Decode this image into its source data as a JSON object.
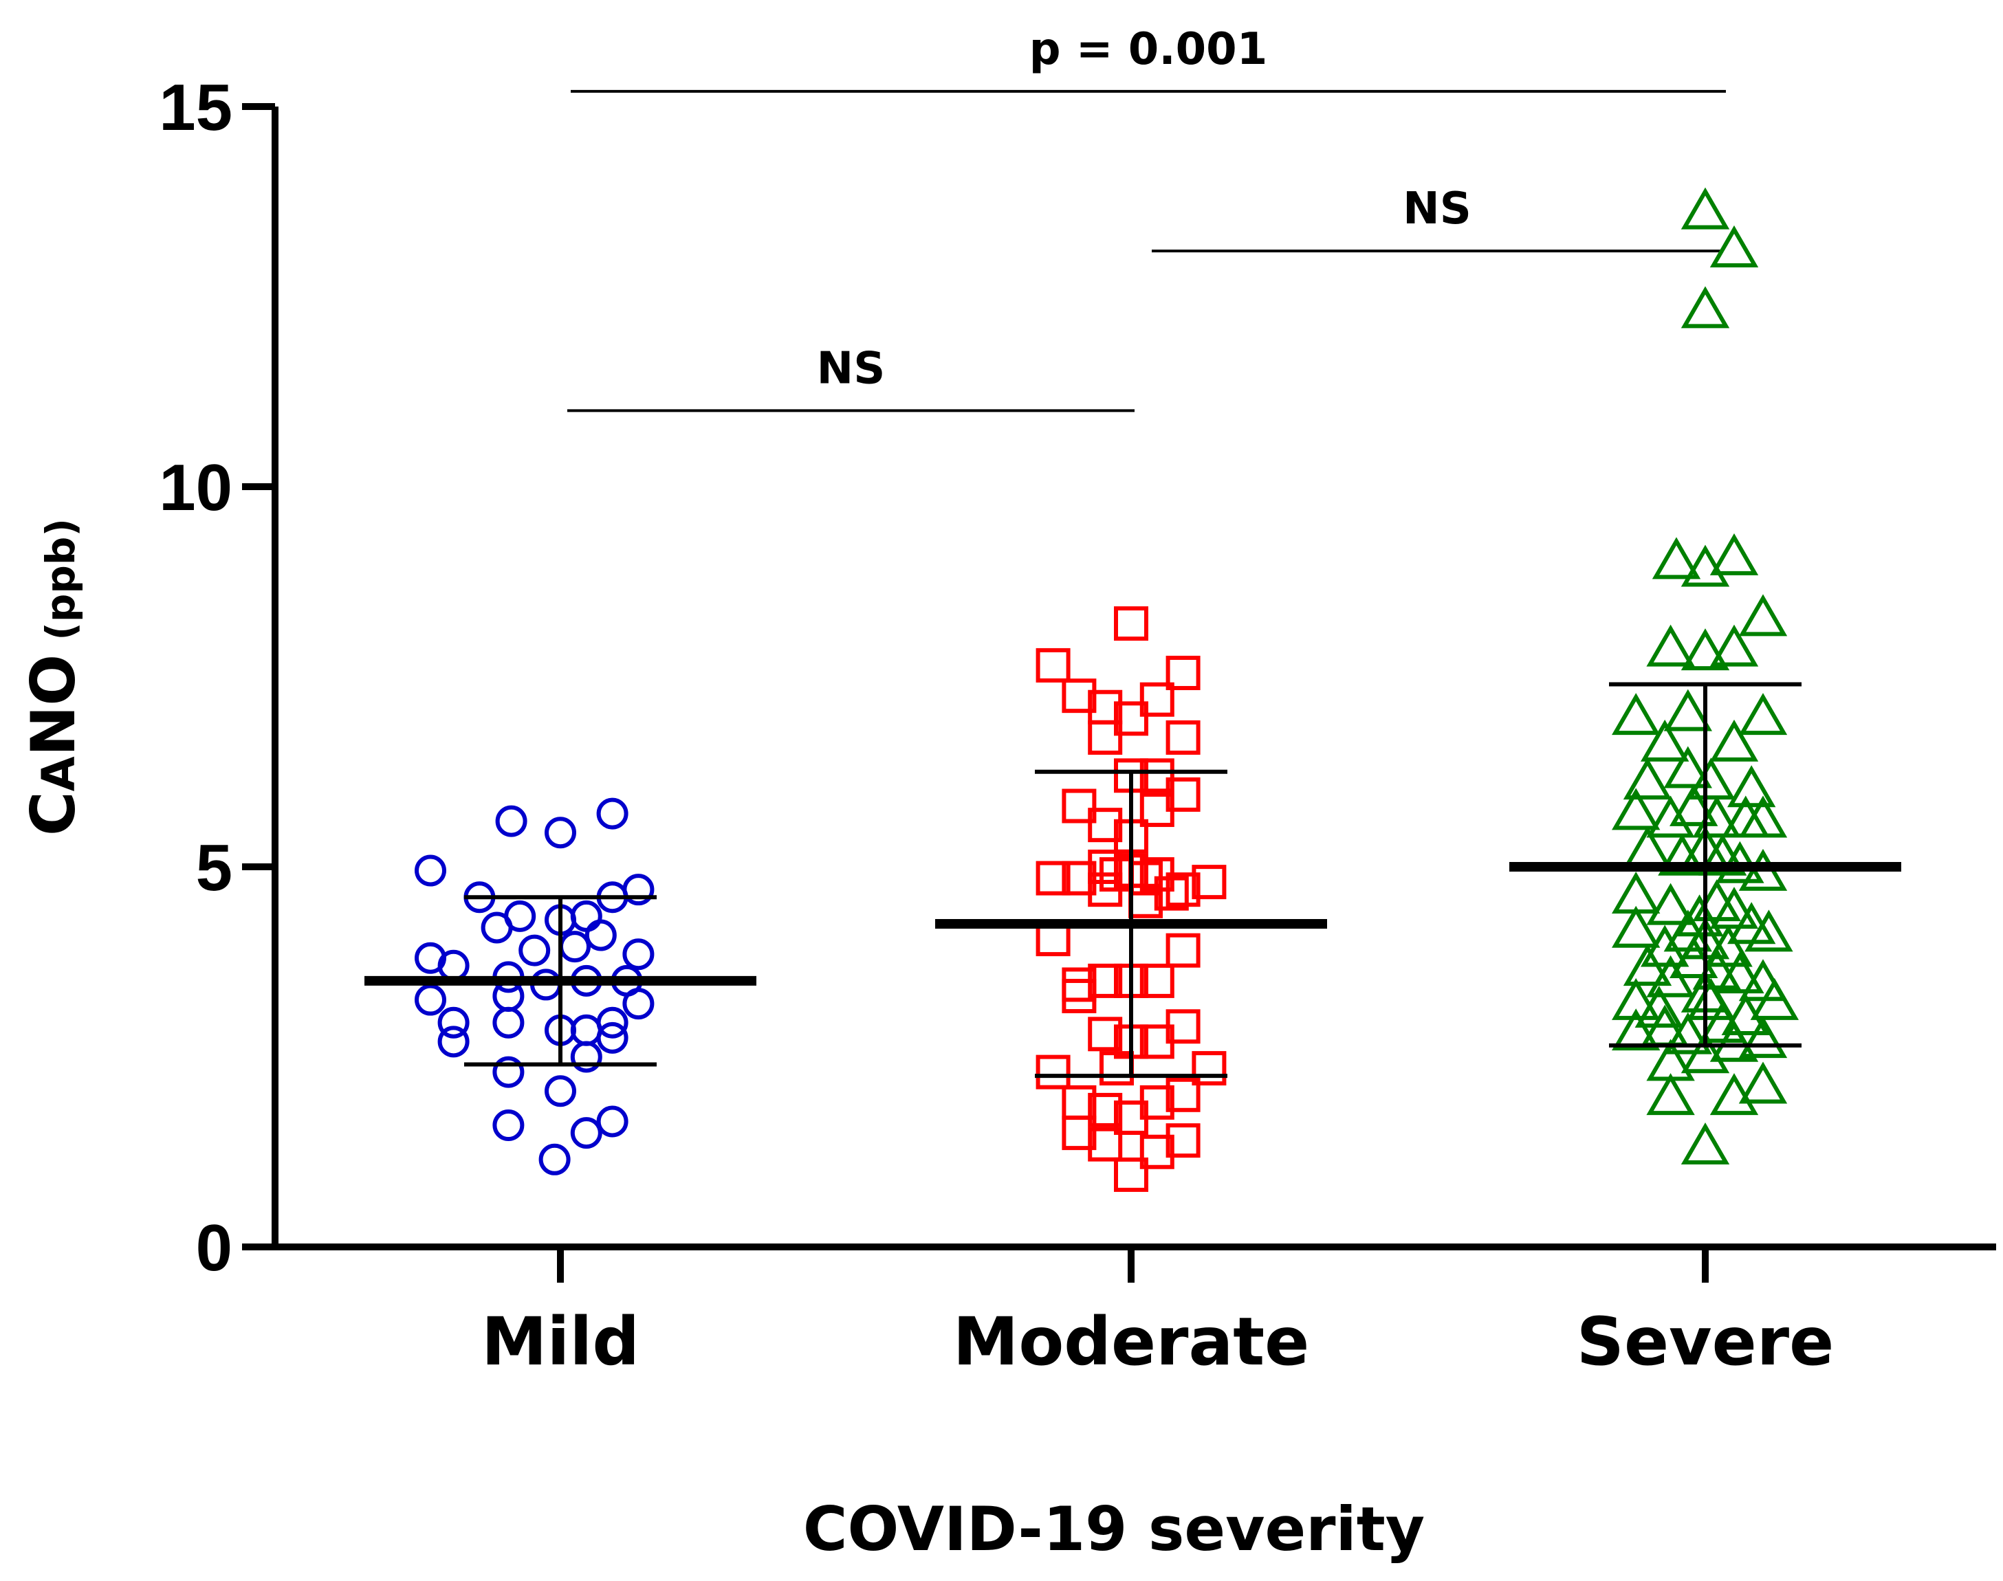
{
  "chart_data": {
    "type": "scatter",
    "title": "",
    "xlabel": "COVID-19 severity",
    "ylabel": {
      "main": "C",
      "sub": "A",
      "rest": "NO",
      "unit": " (ppb)"
    },
    "ylim": [
      0,
      15
    ],
    "yticks": [
      "0",
      "5",
      "10",
      "15"
    ],
    "categories": [
      "Mild",
      "Moderate",
      "Severe"
    ],
    "series": [
      {
        "name": "Mild",
        "marker": "circle",
        "color": "#0000cc",
        "mean": 3.5,
        "sd_low": 2.4,
        "sd_high": 4.6,
        "points": [
          [
            -0.45,
            4.95
          ],
          [
            -0.17,
            5.6
          ],
          [
            0.0,
            5.45
          ],
          [
            0.18,
            5.7
          ],
          [
            -0.28,
            4.6
          ],
          [
            0.18,
            4.6
          ],
          [
            0.27,
            4.7
          ],
          [
            -0.22,
            4.2
          ],
          [
            -0.14,
            4.35
          ],
          [
            0.0,
            4.3
          ],
          [
            0.09,
            4.35
          ],
          [
            0.14,
            4.1
          ],
          [
            -0.45,
            3.8
          ],
          [
            -0.37,
            3.7
          ],
          [
            -0.09,
            3.9
          ],
          [
            0.05,
            3.95
          ],
          [
            0.27,
            3.85
          ],
          [
            -0.18,
            3.55
          ],
          [
            -0.05,
            3.45
          ],
          [
            0.09,
            3.5
          ],
          [
            0.23,
            3.5
          ],
          [
            -0.45,
            3.25
          ],
          [
            -0.18,
            3.3
          ],
          [
            0.27,
            3.2
          ],
          [
            -0.37,
            2.95
          ],
          [
            -0.18,
            2.95
          ],
          [
            0.0,
            2.85
          ],
          [
            0.09,
            2.85
          ],
          [
            0.18,
            2.95
          ],
          [
            -0.37,
            2.7
          ],
          [
            0.09,
            2.5
          ],
          [
            0.18,
            2.75
          ],
          [
            -0.18,
            2.3
          ],
          [
            0.0,
            2.05
          ],
          [
            -0.18,
            1.6
          ],
          [
            0.09,
            1.5
          ],
          [
            0.18,
            1.65
          ],
          [
            -0.02,
            1.15
          ]
        ]
      },
      {
        "name": "Moderate",
        "marker": "square",
        "color": "#ff0000",
        "mean": 4.25,
        "sd_low": 2.25,
        "sd_high": 6.25,
        "points": [
          [
            0.0,
            8.2
          ],
          [
            -0.27,
            7.65
          ],
          [
            0.18,
            7.55
          ],
          [
            -0.18,
            7.25
          ],
          [
            -0.09,
            7.1
          ],
          [
            0.09,
            7.2
          ],
          [
            -0.09,
            6.7
          ],
          [
            0.0,
            6.95
          ],
          [
            0.18,
            6.7
          ],
          [
            0.0,
            6.2
          ],
          [
            0.09,
            6.2
          ],
          [
            0.09,
            5.75
          ],
          [
            0.18,
            5.95
          ],
          [
            -0.18,
            5.8
          ],
          [
            -0.09,
            5.55
          ],
          [
            0.0,
            5.4
          ],
          [
            -0.27,
            4.85
          ],
          [
            -0.18,
            4.85
          ],
          [
            -0.09,
            5.0
          ],
          [
            -0.05,
            4.9
          ],
          [
            0.0,
            4.95
          ],
          [
            0.05,
            4.85
          ],
          [
            0.09,
            4.9
          ],
          [
            0.14,
            4.65
          ],
          [
            0.18,
            4.7
          ],
          [
            0.27,
            4.8
          ],
          [
            -0.09,
            4.7
          ],
          [
            0.05,
            4.55
          ],
          [
            -0.27,
            4.05
          ],
          [
            0.18,
            3.9
          ],
          [
            -0.18,
            3.45
          ],
          [
            -0.18,
            3.3
          ],
          [
            -0.09,
            3.5
          ],
          [
            0.0,
            3.5
          ],
          [
            0.09,
            3.5
          ],
          [
            -0.09,
            2.8
          ],
          [
            0.0,
            2.7
          ],
          [
            0.09,
            2.7
          ],
          [
            0.18,
            2.9
          ],
          [
            -0.27,
            2.3
          ],
          [
            -0.05,
            2.35
          ],
          [
            0.27,
            2.35
          ],
          [
            -0.18,
            1.9
          ],
          [
            -0.09,
            1.8
          ],
          [
            0.09,
            1.9
          ],
          [
            0.18,
            2.0
          ],
          [
            -0.18,
            1.5
          ],
          [
            -0.09,
            1.35
          ],
          [
            0.0,
            1.7
          ],
          [
            0.09,
            1.25
          ],
          [
            0.18,
            1.4
          ],
          [
            0.0,
            0.95
          ]
        ]
      },
      {
        "name": "Severe",
        "marker": "triangle",
        "color": "#008000",
        "mean": 5.0,
        "sd_low": 2.65,
        "sd_high": 7.4,
        "points": [
          [
            0.0,
            13.6
          ],
          [
            0.1,
            13.1
          ],
          [
            0.0,
            12.3
          ],
          [
            -0.1,
            9.0
          ],
          [
            0.0,
            8.9
          ],
          [
            0.1,
            9.05
          ],
          [
            0.2,
            8.25
          ],
          [
            -0.12,
            7.85
          ],
          [
            0.0,
            7.8
          ],
          [
            0.1,
            7.85
          ],
          [
            -0.24,
            6.95
          ],
          [
            -0.06,
            7.0
          ],
          [
            0.2,
            6.95
          ],
          [
            -0.14,
            6.6
          ],
          [
            0.1,
            6.6
          ],
          [
            -0.2,
            6.1
          ],
          [
            -0.06,
            6.25
          ],
          [
            0.02,
            6.1
          ],
          [
            0.16,
            6.0
          ],
          [
            -0.24,
            5.7
          ],
          [
            -0.12,
            5.6
          ],
          [
            -0.04,
            5.75
          ],
          [
            0.04,
            5.6
          ],
          [
            0.14,
            5.6
          ],
          [
            0.2,
            5.6
          ],
          [
            -0.2,
            5.2
          ],
          [
            -0.08,
            5.1
          ],
          [
            0.0,
            5.2
          ],
          [
            0.06,
            5.1
          ],
          [
            0.12,
            5.0
          ],
          [
            0.2,
            4.9
          ],
          [
            -0.24,
            4.6
          ],
          [
            -0.12,
            4.45
          ],
          [
            -0.02,
            4.3
          ],
          [
            0.04,
            4.5
          ],
          [
            0.1,
            4.4
          ],
          [
            0.16,
            4.2
          ],
          [
            -0.24,
            4.15
          ],
          [
            -0.14,
            3.9
          ],
          [
            -0.06,
            4.1
          ],
          [
            0.0,
            4.0
          ],
          [
            0.08,
            3.9
          ],
          [
            0.22,
            4.1
          ],
          [
            -0.2,
            3.65
          ],
          [
            -0.12,
            3.5
          ],
          [
            -0.04,
            3.75
          ],
          [
            0.04,
            3.6
          ],
          [
            0.12,
            3.55
          ],
          [
            0.2,
            3.45
          ],
          [
            -0.24,
            3.2
          ],
          [
            -0.16,
            3.1
          ],
          [
            0.0,
            3.3
          ],
          [
            0.02,
            3.2
          ],
          [
            0.14,
            3.0
          ],
          [
            0.24,
            3.2
          ],
          [
            -0.24,
            2.8
          ],
          [
            -0.14,
            2.85
          ],
          [
            -0.06,
            2.75
          ],
          [
            0.06,
            2.9
          ],
          [
            0.1,
            2.65
          ],
          [
            0.2,
            2.7
          ],
          [
            -0.12,
            2.4
          ],
          [
            0.0,
            2.5
          ],
          [
            -0.12,
            1.95
          ],
          [
            0.1,
            1.95
          ],
          [
            0.2,
            2.1
          ],
          [
            0.0,
            1.3
          ]
        ]
      }
    ],
    "annotations": [
      {
        "text": "p = 0.001",
        "from": "Mild",
        "to": "Severe",
        "y": 15.2
      },
      {
        "text": "NS",
        "from": "Moderate",
        "to": "Severe",
        "y": 13.1
      },
      {
        "text": "NS",
        "from": "Mild",
        "to": "Moderate",
        "y": 11.0
      }
    ]
  }
}
